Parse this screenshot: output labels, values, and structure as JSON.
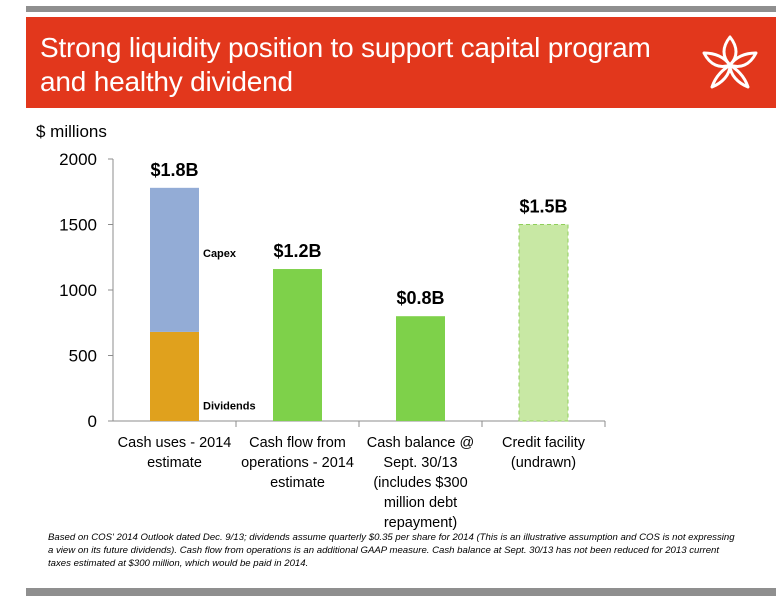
{
  "header": {
    "title": "Strong liquidity position to support capital program and healthy dividend"
  },
  "logo": {
    "icon": "leaf-flower-logo-icon"
  },
  "colors": {
    "header_bg": "#e2371c",
    "capex": "#93acd6",
    "dividends": "#e0a11d",
    "green": "#7ed14a",
    "light_green": "#c8e8a4",
    "light_green_border": "#8fce5a",
    "rule": "#8f8f8f"
  },
  "chart_data": {
    "type": "bar",
    "ylabel": "$ millions",
    "ylim": [
      0,
      2000
    ],
    "yticks": [
      0,
      500,
      1000,
      1500,
      2000
    ],
    "grid": false,
    "categories": [
      [
        "Cash uses - 2014",
        "estimate"
      ],
      [
        "Cash flow from",
        "operations -  2014",
        "estimate"
      ],
      [
        "Cash balance @",
        "Sept. 30/13",
        "(includes $300",
        "million debt",
        "repayment)"
      ],
      [
        "Credit facility",
        "(undrawn)"
      ]
    ],
    "bars": [
      {
        "total_label": "$1.8B",
        "segments": [
          {
            "name": "Dividends",
            "value": 680,
            "color": "#e0a11d"
          },
          {
            "name": "Capex",
            "value": 1100,
            "color": "#93acd6"
          }
        ]
      },
      {
        "total_label": "$1.2B",
        "segments": [
          {
            "name": "",
            "value": 1160,
            "color": "#7ed14a"
          }
        ]
      },
      {
        "total_label": "$0.8B",
        "segments": [
          {
            "name": "",
            "value": 800,
            "color": "#7ed14a"
          }
        ]
      },
      {
        "total_label": "$1.5B",
        "dashed": true,
        "segments": [
          {
            "name": "",
            "value": 1500,
            "color": "#c8e8a4"
          }
        ]
      }
    ]
  },
  "footnote": "Based on COS' 2014 Outlook dated Dec. 9/13; dividends assume quarterly $0.35 per share for 2014 (This is an illustrative assumption and COS is not expressing a view on its future dividends). Cash flow from operations is an additional GAAP measure. Cash balance at Sept. 30/13 has not been reduced for 2013 current taxes estimated at $300 million, which would be paid in 2014."
}
